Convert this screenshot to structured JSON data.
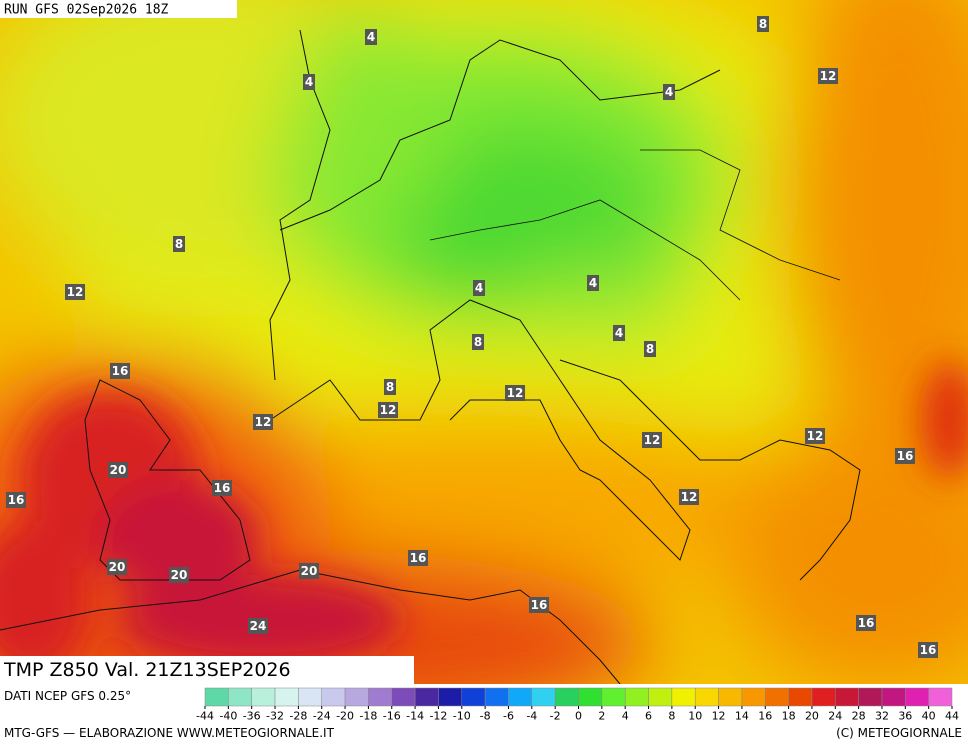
{
  "header": {
    "run": "RUN GFS 02Sep2026 18Z"
  },
  "map": {
    "title": "TMP Z850 Val. 21Z13SEP2026",
    "contour_labels": [
      4,
      4,
      8,
      12,
      4,
      8,
      12,
      4,
      4,
      4,
      8,
      8,
      16,
      8,
      12,
      12,
      12,
      12,
      12,
      16,
      20,
      16,
      16,
      12,
      16,
      20,
      20,
      20,
      16,
      24,
      16,
      16
    ]
  },
  "colorbar": {
    "source": "DATI NCEP GFS 0.25°",
    "ticks": [
      -44,
      -40,
      -36,
      -32,
      -28,
      -24,
      -20,
      -18,
      -16,
      -14,
      -12,
      -10,
      -8,
      -6,
      -4,
      -2,
      0,
      2,
      4,
      6,
      8,
      10,
      12,
      14,
      16,
      18,
      20,
      24,
      28,
      32,
      36,
      40,
      44
    ],
    "colors": [
      "#5fd8a8",
      "#8fe6c6",
      "#b9f0dc",
      "#d6f4ee",
      "#d9e4f4",
      "#c9c9ee",
      "#b8a8e0",
      "#a07cd0",
      "#7d4cb8",
      "#4a28a0",
      "#1c1ca8",
      "#1040d8",
      "#1070f0",
      "#10a8f8",
      "#30d0f0",
      "#28d060",
      "#30e030",
      "#60f030",
      "#90f020",
      "#c0f010",
      "#f0f000",
      "#f8d800",
      "#f8b800",
      "#f89800",
      "#f07000",
      "#e84800",
      "#e02020",
      "#c81838",
      "#b01858",
      "#c01880",
      "#e020b0",
      "#f060d8"
    ]
  },
  "footer": {
    "credit": "MTG-GFS — ELABORAZIONE WWW.METEOGIORNALE.IT",
    "copyright": "(C) METEOGIORNALE"
  }
}
